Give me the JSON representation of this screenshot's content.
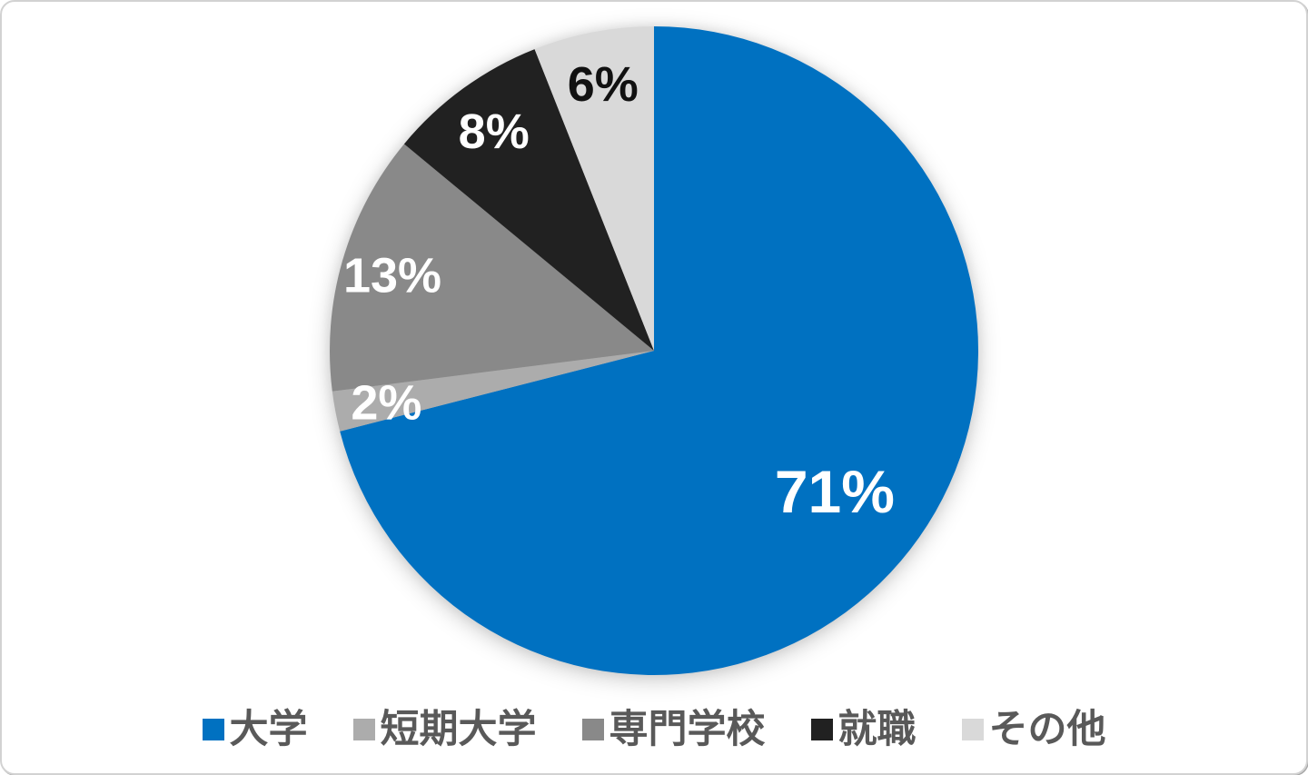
{
  "chart_data": {
    "type": "pie",
    "title": "",
    "categories": [
      "大学",
      "短期大学",
      "専門学校",
      "就職",
      "その他"
    ],
    "values": [
      71,
      2,
      13,
      8,
      6
    ],
    "labels": [
      "71%",
      "2%",
      "13%",
      "8%",
      "6%"
    ],
    "unit": "%",
    "colors": [
      "#0071C1",
      "#ACACAC",
      "#898989",
      "#212121",
      "#D9D9D9"
    ],
    "start_angle_deg": 0,
    "direction": "clockwise",
    "grid": "off",
    "legend_position": "bottom",
    "legend_marker": "square",
    "legend_text_color": "#595959",
    "label_text_light": "#FFFFFF",
    "label_text_dark": "#111111",
    "background": "#FFFFFF"
  }
}
